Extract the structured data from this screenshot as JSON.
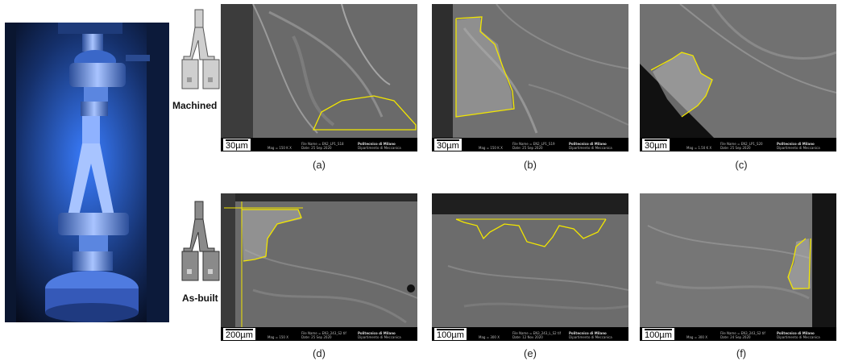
{
  "row_labels": {
    "top": "Machined",
    "bottom": "As-built"
  },
  "panels": [
    {
      "caption": "(a)",
      "scale": "30µm",
      "mag": "Mag = 150 K X",
      "file": "File Name = EN2_LP1_S18",
      "date": "Date: 25 Sep 2020",
      "inst1": "Politecnico di Milano",
      "inst2": "Dipartimento di Meccanica"
    },
    {
      "caption": "(b)",
      "scale": "30µm",
      "mag": "Mag = 150 K X",
      "file": "File Name = EN2_LP1_S19",
      "date": "Date: 25 Sep 2020",
      "inst1": "Politecnico di Milano",
      "inst2": "Dipartimento di Meccanica"
    },
    {
      "caption": "(c)",
      "scale": "30µm",
      "mag": "Mag = 1.50 K X",
      "file": "File Name = EN2_LP1_S20",
      "date": "Date: 25 Sep 2020",
      "inst1": "Politecnico di Milano",
      "inst2": "Dipartimento di Meccanica"
    },
    {
      "caption": "(d)",
      "scale": "200µm",
      "mag": "Mag = 150 X",
      "file": "File Name = EN3_243_S2 tif",
      "date": "Date: 25 Sep 2020",
      "inst1": "Politecnico di Milano",
      "inst2": "Dipartimento di Meccanica"
    },
    {
      "caption": "(e)",
      "scale": "100µm",
      "mag": "Mag = 300 X",
      "file": "File Name = EN3_243_L_S2 tif",
      "date": "Date: 12 Nov 2020",
      "inst1": "Politecnico di Milano",
      "inst2": "Dipartimento di Meccanica"
    },
    {
      "caption": "(f)",
      "scale": "100µm",
      "mag": "Mag = 300 X",
      "file": "File Name = EN3_243_S2 tif",
      "date": "Date: 24 Sep 2020",
      "inst1": "Politecnico di Milano",
      "inst2": "Dipartimento di Meccanica"
    }
  ],
  "colors": {
    "outline": "#f2e600",
    "sem_gray": "#5d5d5d",
    "photo_blue": "#2a6cff"
  }
}
